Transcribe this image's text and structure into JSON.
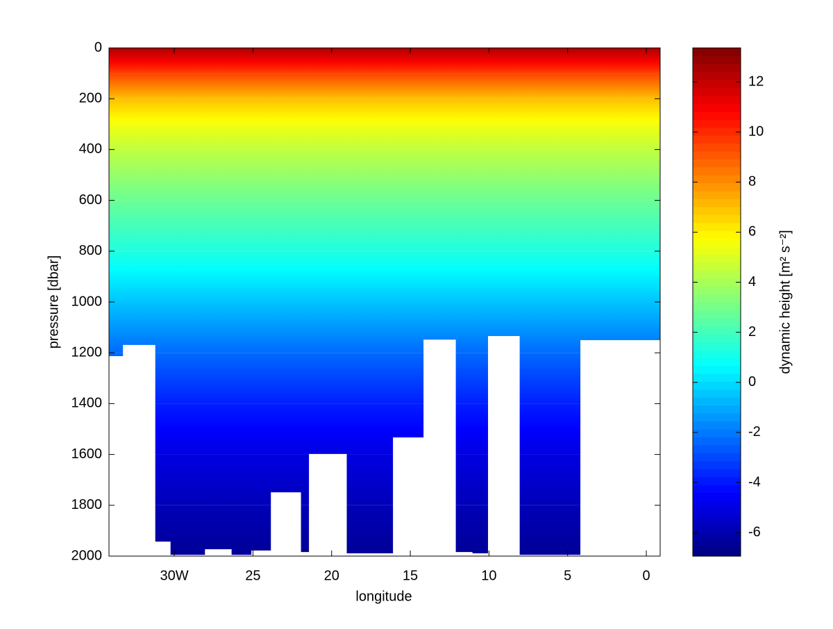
{
  "chart_data": {
    "type": "contour",
    "x_label": "longitude",
    "y_label": "pressure [dbar]",
    "colorbar_label": "dynamic height [m² s⁻²]",
    "xlim": [
      -34.15,
      0.88
    ],
    "xticks": [
      {
        "value": -30,
        "label": "30W"
      },
      {
        "value": -25,
        "label": "25"
      },
      {
        "value": -20,
        "label": "20"
      },
      {
        "value": -15,
        "label": "15"
      },
      {
        "value": -10,
        "label": "10"
      },
      {
        "value": -5,
        "label": "5"
      },
      0
    ],
    "ylim": [
      0,
      2000
    ],
    "y_reversed": true,
    "yticks": [
      0,
      200,
      400,
      600,
      800,
      1000,
      1200,
      1400,
      1600,
      1800,
      2000
    ],
    "colormap": "jet",
    "clim": [
      -6.94,
      13.36
    ],
    "cticks": [
      -6,
      -4,
      -2,
      0,
      2,
      4,
      6,
      8,
      10,
      12
    ],
    "field": {
      "pressure": [
        0,
        100,
        200,
        300,
        400,
        600,
        800,
        1000,
        1200,
        1400,
        1600,
        1800,
        2000
      ],
      "values": [
        12.5,
        9.5,
        7,
        5.5,
        4.5,
        2.8,
        1.3,
        -0.5,
        -2.3,
        -3.8,
        -5,
        -5.8,
        -6.5
      ]
    },
    "bottom": {
      "color": "#ffffff",
      "edges": [
        -34.15,
        -33.26,
        -31.23,
        -30.26,
        -28.05,
        -26.38,
        -25.1,
        -23.86,
        -21.97,
        -21.44,
        -19.06,
        -16.1,
        -14.16,
        -12.13,
        -11.07,
        -10.06,
        -8.07,
        -4.19,
        0.88
      ],
      "pressure": [
        1213,
        1169,
        1943,
        1995,
        1973,
        1995,
        1978,
        1749,
        1984,
        1598,
        1989,
        1533,
        1148,
        1984,
        1989,
        1134,
        1995,
        1150
      ]
    }
  }
}
